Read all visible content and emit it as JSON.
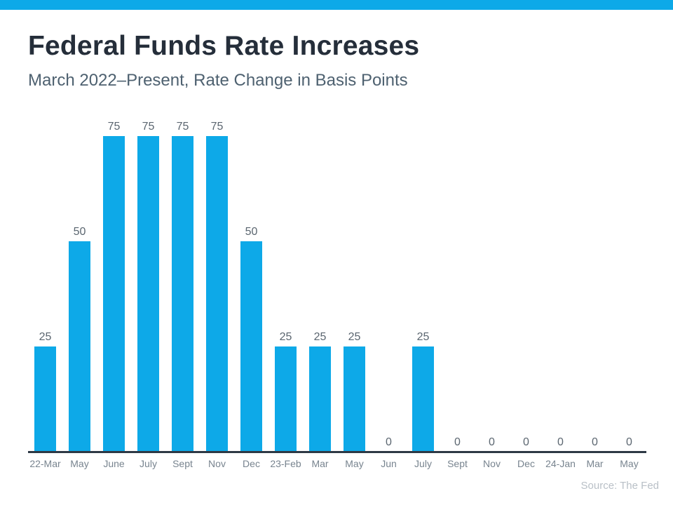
{
  "accent_color": "#0da9e8",
  "axis_color": "#2e3945",
  "chart_data": {
    "type": "bar",
    "title": "Federal Funds Rate Increases",
    "subtitle": "March 2022–Present, Rate Change in Basis Points",
    "categories": [
      "22-Mar",
      "May",
      "June",
      "July",
      "Sept",
      "Nov",
      "Dec",
      "23-Feb",
      "Mar",
      "May",
      "Jun",
      "July",
      "Sept",
      "Nov",
      "Dec",
      "24-Jan",
      "Mar",
      "May"
    ],
    "values": [
      25,
      50,
      75,
      75,
      75,
      75,
      50,
      25,
      25,
      25,
      0,
      25,
      0,
      0,
      0,
      0,
      0,
      0
    ],
    "xlabel": "",
    "ylabel": "",
    "ylim": [
      0,
      75
    ],
    "grid": false,
    "legend": false,
    "data_labels": true,
    "bar_color": "#0da9e8",
    "source": "Source: The Fed"
  }
}
